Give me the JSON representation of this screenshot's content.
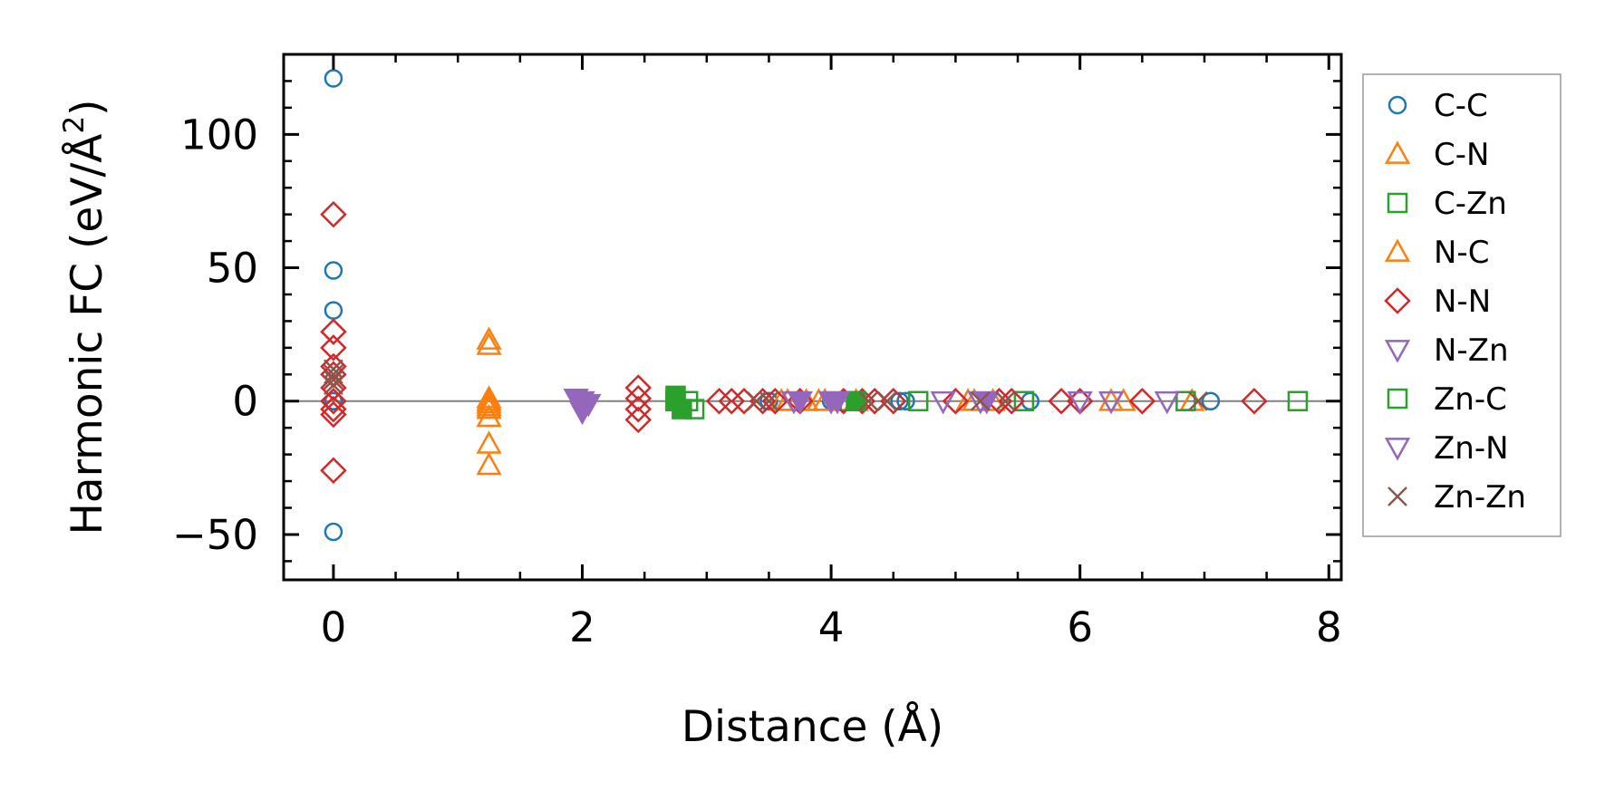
{
  "chart_data": {
    "type": "scatter",
    "title": "",
    "xlabel": "Distance (Å)",
    "ylabel_prefix": "Harmonic FC (eV/Å",
    "ylabel_sup": "2",
    "ylabel_suffix": ")",
    "xlim": [
      -0.4,
      8.1
    ],
    "ylim": [
      -67,
      130
    ],
    "xticks": [
      0,
      2,
      4,
      6,
      8
    ],
    "xtick_labels": [
      "0",
      "2",
      "4",
      "6",
      "8"
    ],
    "yticks": [
      -50,
      0,
      50,
      100
    ],
    "ytick_labels": [
      "−50",
      "0",
      "50",
      "100"
    ],
    "reference_line_y": 0,
    "grid": false,
    "legend_position": "outside-right",
    "series": [
      {
        "name": "C-C",
        "marker": "circle",
        "filled": false,
        "color": "#1f77b4",
        "x": [
          0,
          0,
          0,
          0,
          0,
          0,
          0,
          3.5,
          4.0,
          4.55,
          4.6,
          5.6,
          7.05
        ],
        "y": [
          121,
          49,
          34,
          0,
          0,
          0,
          -49,
          0,
          0,
          0,
          0,
          0,
          0
        ]
      },
      {
        "name": "C-N",
        "marker": "triangle-up",
        "filled": false,
        "color": "#ff7f0e",
        "x": [
          1.25,
          1.25,
          1.25,
          1.25,
          1.25,
          1.25,
          1.25,
          1.25,
          3.6,
          3.8,
          3.9,
          4.2,
          5.1,
          5.3,
          6.25,
          6.35,
          6.9
        ],
        "y": [
          23,
          21,
          1,
          -1,
          -3,
          -6,
          -16,
          -24,
          0,
          0,
          0,
          0,
          0,
          0,
          0,
          0,
          0
        ]
      },
      {
        "name": "C-Zn",
        "marker": "square",
        "filled": false,
        "color": "#2ca02c",
        "x": [
          2.75,
          2.85,
          2.9,
          4.15,
          4.7,
          5.55,
          6.85,
          7.75
        ],
        "y": [
          0,
          0,
          -3,
          0,
          0,
          0,
          0,
          0
        ]
      },
      {
        "name": "N-C",
        "marker": "triangle-up",
        "filled": false,
        "color": "#ff7f0e",
        "x": [
          1.25,
          1.25,
          3.65,
          3.95,
          5.15
        ],
        "y": [
          0,
          -2,
          0,
          0,
          0
        ]
      },
      {
        "name": "N-N",
        "marker": "diamond",
        "filled": false,
        "color": "#d62728",
        "x": [
          0,
          0,
          0,
          0,
          0,
          0,
          0,
          0,
          0,
          0,
          2.45,
          2.45,
          2.45,
          2.45,
          3.1,
          3.2,
          3.3,
          3.45,
          3.55,
          3.75,
          4.1,
          4.25,
          4.35,
          4.5,
          5.0,
          5.35,
          5.45,
          5.85,
          6.0,
          6.5,
          7.4
        ],
        "y": [
          70,
          26,
          20,
          13,
          10,
          5,
          0,
          -3,
          -5,
          -26,
          5,
          1,
          -3,
          -7,
          0,
          0,
          0,
          0,
          0,
          0,
          0,
          0,
          0,
          0,
          0,
          0,
          0,
          0,
          0,
          0,
          0
        ]
      },
      {
        "name": "N-Zn",
        "marker": "triangle-down",
        "filled": false,
        "color": "#9467bd",
        "x": [
          2.0,
          2.0,
          2.0,
          2.0,
          3.7,
          4.0,
          4.9,
          5.2,
          6.0,
          6.25,
          6.7
        ],
        "y": [
          0,
          -2,
          -3,
          -4,
          0,
          0,
          0,
          0,
          0,
          0,
          0
        ]
      },
      {
        "name": "Zn-C",
        "marker": "square",
        "filled": true,
        "color": "#2ca02c",
        "x": [
          2.75,
          2.75,
          2.8,
          4.2
        ],
        "y": [
          2,
          0,
          -3,
          0
        ]
      },
      {
        "name": "Zn-N",
        "marker": "triangle-down",
        "filled": true,
        "color": "#9467bd",
        "x": [
          1.95,
          2.0,
          2.05,
          2.0,
          3.75,
          4.0,
          4.05,
          5.25
        ],
        "y": [
          1,
          0,
          -1,
          -3,
          0,
          0,
          0,
          0
        ]
      },
      {
        "name": "Zn-Zn",
        "marker": "x",
        "filled": false,
        "color": "#8c564b",
        "x": [
          0,
          0,
          0,
          0,
          3.4,
          3.5,
          4.3,
          4.45,
          5.2,
          5.4,
          6.95
        ],
        "y": [
          12,
          10,
          8,
          6,
          0,
          0,
          0,
          0,
          0,
          0,
          0
        ]
      }
    ],
    "legend_entries": [
      {
        "name": "C-C",
        "marker": "circle",
        "color": "#1f77b4"
      },
      {
        "name": "C-N",
        "marker": "triangle-up",
        "color": "#ff7f0e"
      },
      {
        "name": "C-Zn",
        "marker": "square",
        "color": "#2ca02c"
      },
      {
        "name": "N-C",
        "marker": "triangle-up",
        "color": "#ff7f0e"
      },
      {
        "name": "N-N",
        "marker": "diamond",
        "color": "#d62728"
      },
      {
        "name": "N-Zn",
        "marker": "triangle-down",
        "color": "#9467bd"
      },
      {
        "name": "Zn-C",
        "marker": "square",
        "color": "#2ca02c"
      },
      {
        "name": "Zn-N",
        "marker": "triangle-down",
        "color": "#9467bd"
      },
      {
        "name": "Zn-Zn",
        "marker": "x",
        "color": "#8c564b"
      }
    ]
  }
}
